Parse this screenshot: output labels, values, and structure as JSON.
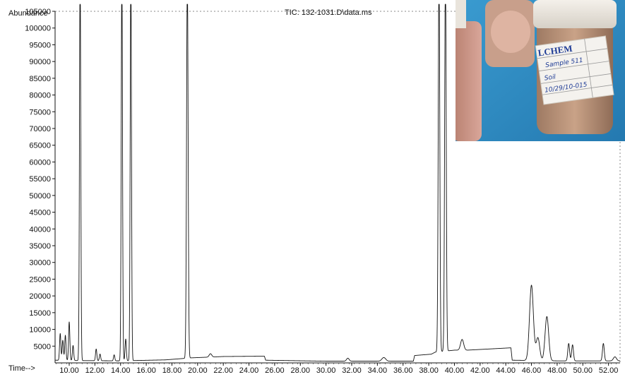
{
  "chart_data": {
    "type": "line",
    "title": "TIC: 132-1031.D\\data.ms",
    "ylabel": "Abundance",
    "xlabel": "Time-->",
    "xlim": [
      8.9,
      52.9
    ],
    "ylim": [
      0,
      105000
    ],
    "grid": false,
    "x_ticks": [
      "10.00",
      "12.00",
      "14.00",
      "16.00",
      "18.00",
      "20.00",
      "22.00",
      "24.00",
      "26.00",
      "28.00",
      "30.00",
      "32.00",
      "34.00",
      "36.00",
      "38.00",
      "40.00",
      "42.00",
      "44.00",
      "46.00",
      "48.00",
      "50.00",
      "52.00"
    ],
    "y_ticks": [
      "5000",
      "10000",
      "15000",
      "20000",
      "25000",
      "30000",
      "35000",
      "40000",
      "45000",
      "50000",
      "55000",
      "60000",
      "65000",
      "70000",
      "75000",
      "80000",
      "85000",
      "90000",
      "95000",
      "100000",
      "105000"
    ],
    "series": [
      {
        "color": "#111111",
        "baseline": [
          [
            8.9,
            800
          ],
          [
            10.5,
            700
          ],
          [
            14.0,
            600
          ],
          [
            17.5,
            900
          ],
          [
            19.5,
            1500
          ],
          [
            22.0,
            1900
          ],
          [
            25.2,
            2000
          ],
          [
            25.3,
            800
          ],
          [
            30.0,
            500
          ],
          [
            36.8,
            500
          ],
          [
            36.9,
            2200
          ],
          [
            38.2,
            2600
          ],
          [
            38.5,
            3200
          ],
          [
            40.0,
            3800
          ],
          [
            41.0,
            3800
          ],
          [
            44.4,
            4500
          ],
          [
            44.5,
            800
          ],
          [
            48.0,
            600
          ],
          [
            52.9,
            600
          ]
        ],
        "peaks": [
          {
            "rt": 9.3,
            "height": 8000,
            "width": 0.05
          },
          {
            "rt": 9.5,
            "height": 6000,
            "width": 0.05
          },
          {
            "rt": 9.7,
            "height": 7500,
            "width": 0.05
          },
          {
            "rt": 10.0,
            "height": 11500,
            "width": 0.05
          },
          {
            "rt": 10.3,
            "height": 4500,
            "width": 0.05
          },
          {
            "rt": 10.85,
            "height": 115000,
            "width": 0.05
          },
          {
            "rt": 12.1,
            "height": 3500,
            "width": 0.05
          },
          {
            "rt": 12.4,
            "height": 2000,
            "width": 0.05
          },
          {
            "rt": 13.5,
            "height": 1800,
            "width": 0.05
          },
          {
            "rt": 14.1,
            "height": 115000,
            "width": 0.05
          },
          {
            "rt": 14.4,
            "height": 6500,
            "width": 0.05
          },
          {
            "rt": 14.8,
            "height": 115000,
            "width": 0.05
          },
          {
            "rt": 19.2,
            "height": 115000,
            "width": 0.06
          },
          {
            "rt": 21.0,
            "height": 1000,
            "width": 0.1
          },
          {
            "rt": 31.7,
            "height": 900,
            "width": 0.1
          },
          {
            "rt": 34.5,
            "height": 1100,
            "width": 0.15
          },
          {
            "rt": 38.8,
            "height": 115000,
            "width": 0.06
          },
          {
            "rt": 39.3,
            "height": 115000,
            "width": 0.06
          },
          {
            "rt": 40.6,
            "height": 3200,
            "width": 0.12
          },
          {
            "rt": 46.0,
            "height": 22500,
            "width": 0.15
          },
          {
            "rt": 46.5,
            "height": 6800,
            "width": 0.14
          },
          {
            "rt": 47.2,
            "height": 13200,
            "width": 0.14
          },
          {
            "rt": 48.9,
            "height": 5200,
            "width": 0.07
          },
          {
            "rt": 49.2,
            "height": 4800,
            "width": 0.07
          },
          {
            "rt": 51.6,
            "height": 5200,
            "width": 0.07
          },
          {
            "rt": 52.5,
            "height": 1200,
            "width": 0.12
          }
        ]
      }
    ]
  },
  "inset_photo": {
    "label_brand": "LCHEM",
    "label_lines": [
      "Sample 511",
      "Soil",
      "10/29/10-015"
    ],
    "colors": {
      "background": "#2f8fc4",
      "jar_tan": "#b99277",
      "cap_white": "#ece6de",
      "label_white": "#f4f2ee",
      "ink_blue": "#1f3c96"
    }
  }
}
